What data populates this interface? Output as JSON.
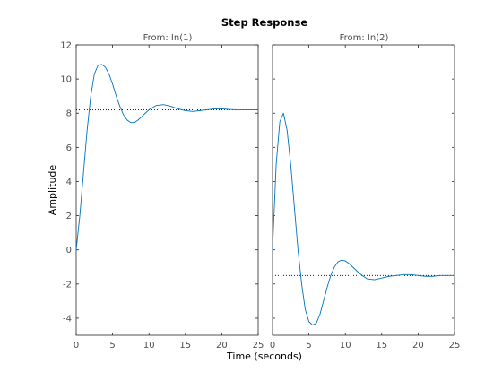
{
  "chart_data": {
    "type": "line",
    "title": "Step Response",
    "xlabel": "Time (seconds)",
    "ylabel": "Amplitude",
    "xlim": [
      0,
      25
    ],
    "ylim": [
      -5,
      12
    ],
    "xticks": [
      0,
      5,
      10,
      15,
      20,
      25
    ],
    "yticks": [
      -4,
      -2,
      0,
      2,
      4,
      6,
      8,
      10,
      12
    ],
    "grid": false,
    "colors": {
      "response": "#0072bd",
      "steady_state": "#000000",
      "axes": "#262626",
      "text_light": "#4d4d4d"
    },
    "panels": [
      {
        "title": "From: In(1)",
        "steady_state": 8.2,
        "series": [
          {
            "x": [
              0,
              0.5,
              1,
              1.5,
              2,
              2.5,
              3,
              3.5,
              4,
              4.5,
              5,
              5.5,
              6,
              6.5,
              7,
              7.5,
              8,
              8.5,
              9,
              9.5,
              10,
              11,
              12,
              13,
              14,
              15,
              16,
              17,
              18,
              19,
              20,
              21,
              22,
              23,
              24,
              25
            ],
            "y": [
              0,
              2.0,
              4.5,
              7.0,
              9.0,
              10.3,
              10.8,
              10.85,
              10.7,
              10.3,
              9.7,
              9.0,
              8.4,
              7.9,
              7.6,
              7.45,
              7.45,
              7.6,
              7.8,
              8.0,
              8.2,
              8.45,
              8.5,
              8.4,
              8.25,
              8.15,
              8.1,
              8.15,
              8.2,
              8.25,
              8.25,
              8.22,
              8.2,
              8.2,
              8.2,
              8.2
            ]
          }
        ]
      },
      {
        "title": "From: In(2)",
        "steady_state": -1.5,
        "series": [
          {
            "x": [
              0,
              0.5,
              1,
              1.5,
              2,
              2.5,
              3,
              3.5,
              4,
              4.5,
              5,
              5.5,
              6,
              6.5,
              7,
              7.5,
              8,
              8.5,
              9,
              9.5,
              10,
              10.5,
              11,
              12,
              13,
              14,
              15,
              16,
              17,
              18,
              19,
              20,
              21,
              22,
              23,
              24,
              25
            ],
            "y": [
              0,
              5.0,
              7.5,
              8.0,
              7.0,
              5.0,
              2.5,
              0,
              -2.0,
              -3.5,
              -4.2,
              -4.4,
              -4.3,
              -3.8,
              -3.0,
              -2.2,
              -1.5,
              -1.0,
              -0.7,
              -0.6,
              -0.65,
              -0.8,
              -1.0,
              -1.4,
              -1.7,
              -1.75,
              -1.65,
              -1.55,
              -1.5,
              -1.45,
              -1.45,
              -1.5,
              -1.55,
              -1.55,
              -1.5,
              -1.5,
              -1.5
            ]
          }
        ]
      }
    ]
  }
}
